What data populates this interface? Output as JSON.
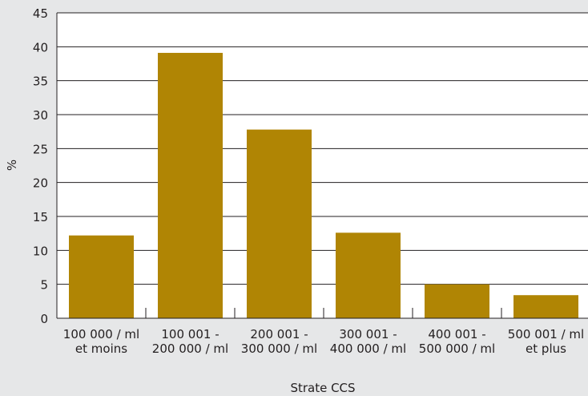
{
  "chart_data": {
    "type": "bar",
    "categories": [
      [
        "100 000 / ml",
        "et moins"
      ],
      [
        "100 001 -",
        "200 000 / ml"
      ],
      [
        "200 001 -",
        "300 000 / ml"
      ],
      [
        "300 001 -",
        "400 000 / ml"
      ],
      [
        "400 001 -",
        "500 000 / ml"
      ],
      [
        "500 001 / ml",
        "et plus"
      ]
    ],
    "values": [
      12.2,
      39.1,
      27.8,
      12.6,
      5.0,
      3.4
    ],
    "xlabel": "Strate CCS",
    "ylabel": "%",
    "ylim": [
      0,
      45
    ],
    "yticks": [
      0,
      5,
      10,
      15,
      20,
      25,
      30,
      35,
      40,
      45
    ],
    "grid": true,
    "colors": {
      "bar": "#b08504",
      "background": "#e6e7e8",
      "plot_background": "#ffffff",
      "axis": "#231f20"
    }
  }
}
